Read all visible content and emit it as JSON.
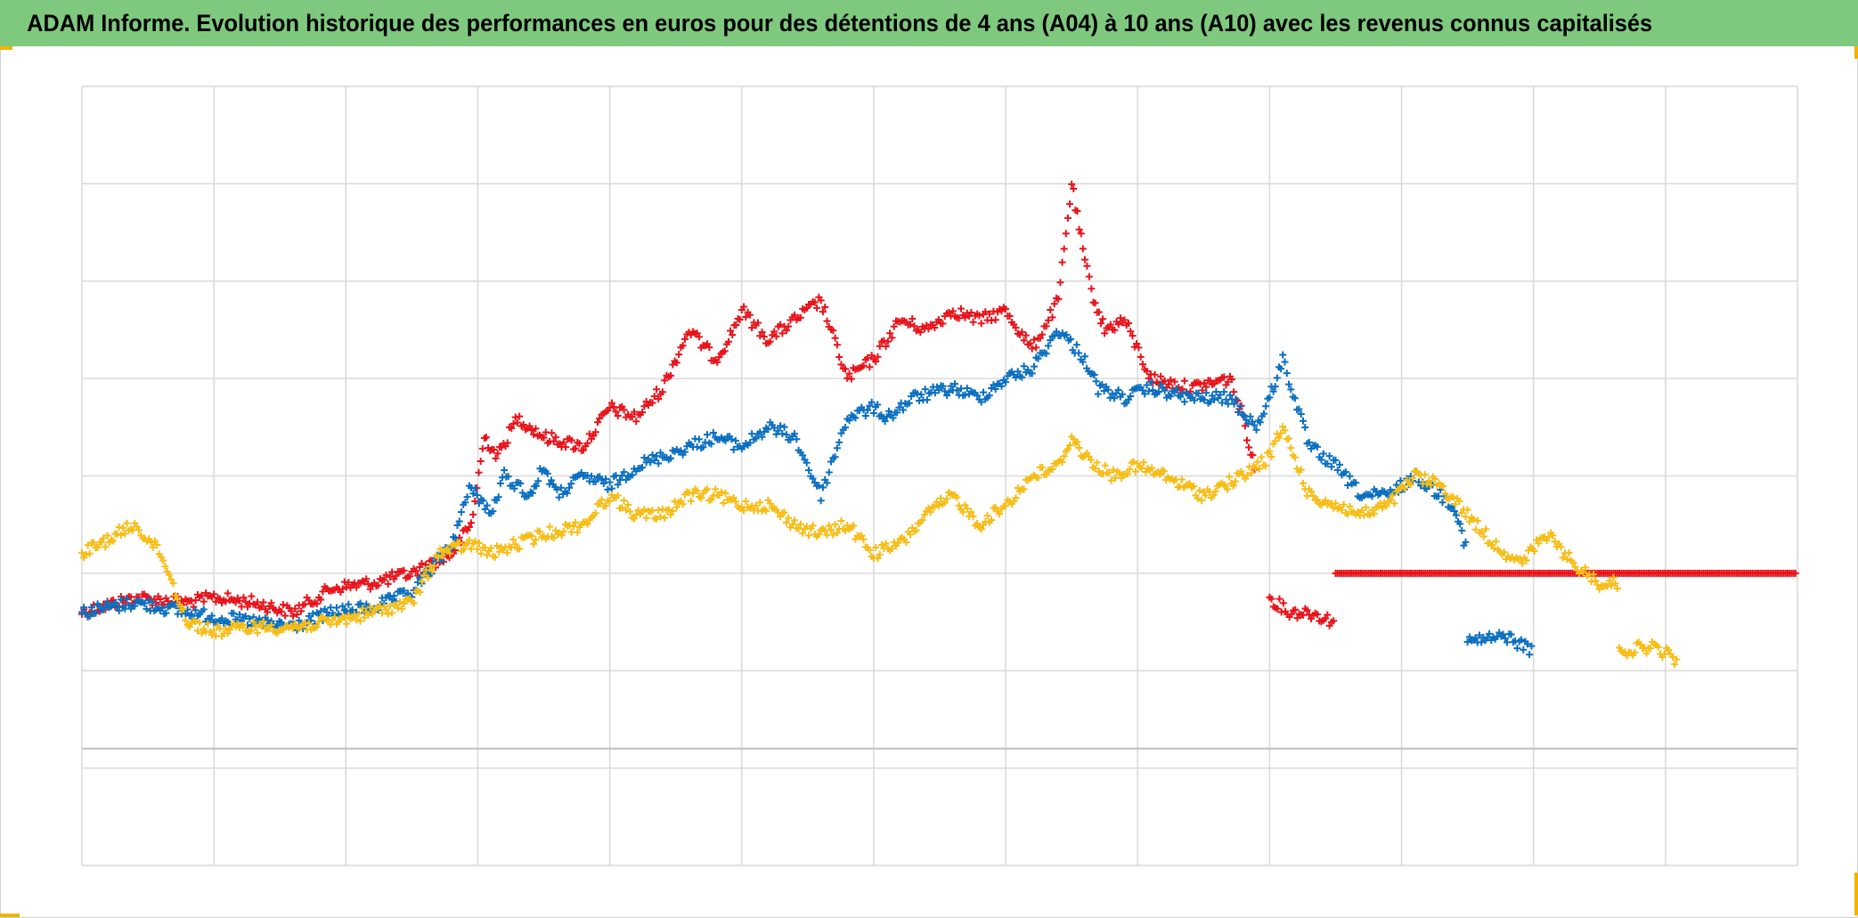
{
  "title": "ADAM Informe. Evolution historique des performances en euros pour des détentions de 4 ans (A04) à 10 ans (A10) avec les revenus connus capitalisés",
  "accent_colors": {
    "title_bg": "#7fc97f",
    "corner_marks": "#f0b400"
  },
  "chart_data": {
    "type": "scatter",
    "marker": "plus",
    "xlabel": "",
    "ylabel": "",
    "x_ticks_labeled": false,
    "y_ticks_labeled": false,
    "xlim": [
      0,
      13
    ],
    "ylim": [
      -1,
      7
    ],
    "zero_line": 0.2,
    "grid": true,
    "legend": "none",
    "series": [
      {
        "color": "#e8131b",
        "segments": [
          {
            "x": [
              0.0,
              0.4,
              0.8,
              1.0,
              1.3,
              1.6,
              1.9,
              2.2,
              2.5,
              2.8,
              2.95,
              3.05,
              3.15,
              3.3,
              3.5,
              3.8,
              4.0,
              4.2,
              4.4,
              4.6,
              4.8,
              4.9,
              5.0,
              5.2,
              5.4,
              5.6,
              5.8,
              6.0,
              6.2,
              6.4,
              6.6,
              6.8,
              7.0,
              7.2,
              7.4,
              7.5,
              7.6,
              7.65,
              7.75,
              7.9,
              8.1,
              8.4,
              8.7,
              8.8,
              8.9
            ],
            "y": [
              1.6,
              1.75,
              1.7,
              1.75,
              1.7,
              1.6,
              1.85,
              1.9,
              2.0,
              2.2,
              2.5,
              3.4,
              3.2,
              3.6,
              3.4,
              3.3,
              3.7,
              3.6,
              3.9,
              4.5,
              4.2,
              4.4,
              4.7,
              4.4,
              4.6,
              4.8,
              4.0,
              4.2,
              4.6,
              4.5,
              4.7,
              4.6,
              4.7,
              4.3,
              4.8,
              6.0,
              5.2,
              4.9,
              4.5,
              4.6,
              4.0,
              3.9,
              4.0,
              3.6,
              3.0
            ]
          },
          {
            "x": [
              9.0,
              9.15,
              9.3,
              9.5
            ],
            "y": [
              1.75,
              1.6,
              1.6,
              1.5
            ]
          },
          {
            "x": [
              9.5,
              13.0
            ],
            "y": [
              2.0,
              2.0
            ]
          }
        ]
      },
      {
        "color": "#0b6fc0",
        "segments": [
          {
            "x": [
              0.0,
              0.4,
              0.8,
              1.0,
              1.3,
              1.6,
              1.9,
              2.2,
              2.5,
              2.8,
              2.95,
              3.1,
              3.2,
              3.4,
              3.5,
              3.6,
              3.8,
              4.0,
              4.2,
              4.4,
              4.6,
              4.8,
              5.0,
              5.2,
              5.4,
              5.6,
              5.8,
              6.0,
              6.1,
              6.3,
              6.6,
              6.8,
              7.0,
              7.2,
              7.4,
              7.6,
              7.7,
              7.9,
              8.1,
              8.4,
              8.7,
              8.9,
              9.0,
              9.1,
              9.3,
              9.5,
              9.7,
              9.9,
              10.1,
              10.4,
              10.5
            ],
            "y": [
              1.6,
              1.7,
              1.6,
              1.55,
              1.5,
              1.45,
              1.6,
              1.65,
              1.8,
              2.3,
              2.9,
              2.6,
              3.0,
              2.8,
              3.1,
              2.8,
              3.0,
              2.9,
              3.1,
              3.2,
              3.3,
              3.4,
              3.3,
              3.5,
              3.4,
              2.8,
              3.6,
              3.7,
              3.6,
              3.8,
              3.9,
              3.8,
              4.0,
              4.1,
              4.5,
              4.2,
              3.9,
              3.8,
              3.9,
              3.8,
              3.8,
              3.5,
              3.8,
              4.2,
              3.3,
              3.1,
              2.8,
              2.8,
              3.0,
              2.7,
              2.2
            ]
          },
          {
            "x": [
              10.5,
              10.8,
              11.0
            ],
            "y": [
              1.3,
              1.35,
              1.2
            ]
          }
        ]
      },
      {
        "color": "#f6bd16",
        "segments": [
          {
            "x": [
              0.0,
              0.4,
              0.6,
              0.8,
              1.0,
              1.3,
              1.6,
              1.9,
              2.2,
              2.5,
              2.7,
              2.95,
              3.1,
              3.3,
              3.5,
              3.8,
              4.0,
              4.2,
              4.4,
              4.6,
              4.8,
              5.0,
              5.2,
              5.4,
              5.6,
              5.8,
              6.0,
              6.2,
              6.4,
              6.6,
              6.8,
              7.0,
              7.2,
              7.4,
              7.5,
              7.6,
              7.8,
              8.0,
              8.2,
              8.5,
              8.8,
              9.0,
              9.1,
              9.3,
              9.5,
              9.7,
              9.9,
              10.1,
              10.3,
              10.5,
              10.7,
              10.9,
              11.1,
              11.3,
              11.5,
              11.65
            ],
            "y": [
              2.2,
              2.5,
              2.2,
              1.5,
              1.4,
              1.45,
              1.45,
              1.5,
              1.6,
              1.7,
              2.2,
              2.3,
              2.2,
              2.3,
              2.4,
              2.5,
              2.8,
              2.6,
              2.6,
              2.8,
              2.8,
              2.7,
              2.7,
              2.5,
              2.4,
              2.5,
              2.2,
              2.3,
              2.6,
              2.8,
              2.5,
              2.7,
              3.0,
              3.1,
              3.4,
              3.2,
              3.0,
              3.1,
              3.0,
              2.8,
              3.0,
              3.2,
              3.5,
              2.8,
              2.7,
              2.6,
              2.7,
              3.0,
              2.9,
              2.6,
              2.3,
              2.1,
              2.4,
              2.1,
              1.9,
              1.9
            ]
          },
          {
            "x": [
              11.65,
              11.9,
              12.1
            ],
            "y": [
              1.2,
              1.25,
              1.1
            ]
          }
        ]
      }
    ]
  }
}
